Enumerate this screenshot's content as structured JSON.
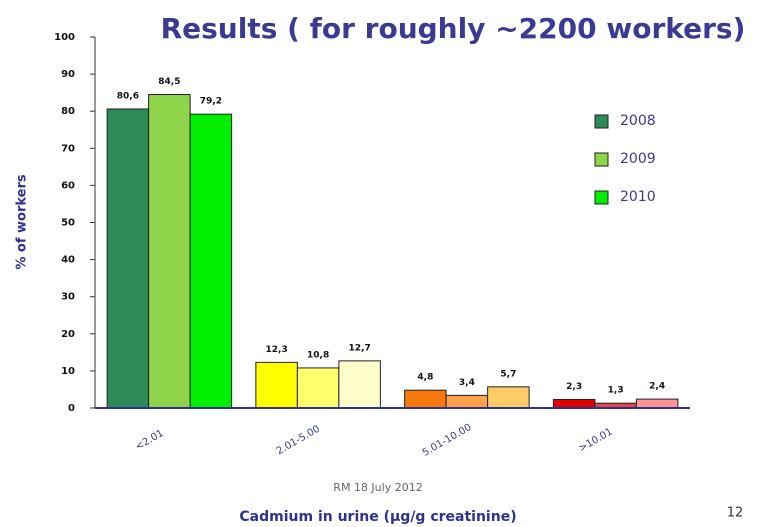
{
  "chart_data": {
    "type": "bar",
    "title": "Results ( for roughly ~2200 workers)",
    "y_label": "% of workers",
    "x_label": "Cadmium in urine (µg/g creatinine)",
    "categories": [
      "<2.01",
      "2.01-5.00",
      "5.01-10.00",
      ">10.01"
    ],
    "series": [
      {
        "name": "2008",
        "color": "#2e8b57",
        "colors": [
          "#2e8b57",
          "#ffff00",
          "#f7790d",
          "#e00000"
        ],
        "values": [
          80.6,
          12.3,
          4.8,
          2.3
        ],
        "value_labels": [
          "80,6",
          "12,3",
          "4,8",
          "2,3"
        ]
      },
      {
        "name": "2009",
        "color": "#8fd44a",
        "colors": [
          "#8fd44a",
          "#ffff6e",
          "#ffa24a",
          "#e84444"
        ],
        "values": [
          84.5,
          10.8,
          3.4,
          1.3
        ],
        "value_labels": [
          "84,5",
          "10,8",
          "3,4",
          "1,3"
        ]
      },
      {
        "name": "2010",
        "color": "#00ee00",
        "colors": [
          "#00ee00",
          "#ffffcc",
          "#ffcc66",
          "#ff9494"
        ],
        "values": [
          79.2,
          12.7,
          5.7,
          2.4
        ],
        "value_labels": [
          "79,2",
          "12,7",
          "5,7",
          "2,4"
        ]
      }
    ],
    "ylim": [
      0,
      100
    ],
    "yticks": [
      0,
      10,
      20,
      30,
      40,
      50,
      60,
      70,
      80,
      90,
      100
    ],
    "grid": false,
    "legend": "right"
  },
  "footer": "RM 18 July 2012",
  "page_number": "12"
}
